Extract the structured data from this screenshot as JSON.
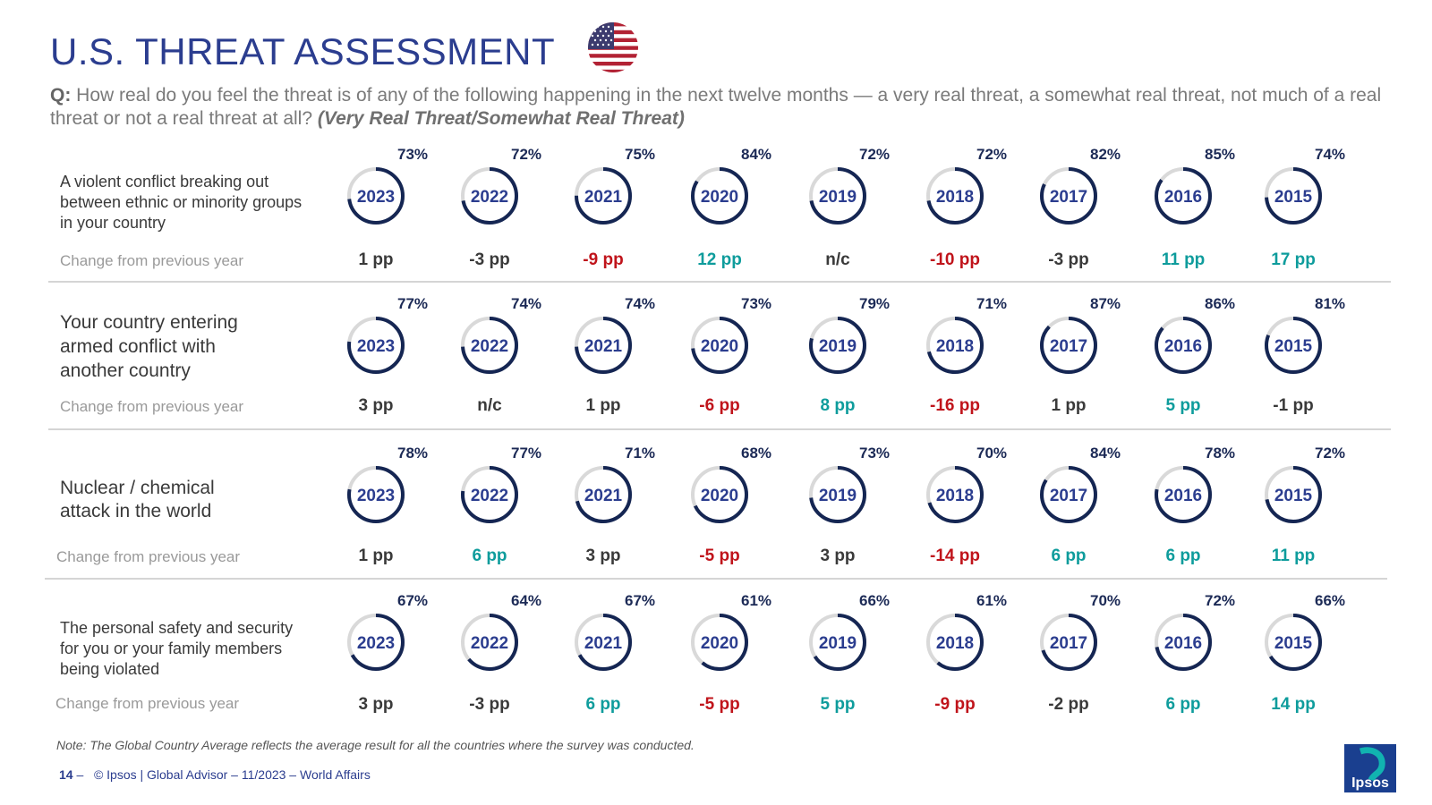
{
  "header": {
    "title": "U.S. THREAT ASSESSMENT",
    "question_prefix": "Q:",
    "question_text": " How real do you feel the threat is of any of the following happening in the next twelve months — a very real threat, a somewhat real threat, not much of a real threat or not a real threat at all? ",
    "question_emphasis": "(Very Real Threat/Somewhat Real Threat)"
  },
  "chart_data": {
    "type": "donut-grid",
    "title": "U.S. THREAT ASSESSMENT",
    "years": [
      "2023",
      "2022",
      "2021",
      "2020",
      "2019",
      "2018",
      "2017",
      "2016",
      "2015"
    ],
    "change_label": "Change from previous year",
    "series": [
      {
        "name": "A violent conflict breaking out between ethnic or minority groups in your country",
        "values": [
          73,
          72,
          75,
          84,
          72,
          72,
          82,
          85,
          74
        ],
        "changes": [
          "1 pp",
          "-3 pp",
          "-9 pp",
          "12 pp",
          "n/c",
          "-10 pp",
          "-3 pp",
          "11 pp",
          "17 pp"
        ]
      },
      {
        "name": "Your country entering armed conflict with another country",
        "values": [
          77,
          74,
          74,
          73,
          79,
          71,
          87,
          86,
          81
        ],
        "changes": [
          "3 pp",
          "n/c",
          "1 pp",
          "-6 pp",
          "8 pp",
          "-16 pp",
          "1 pp",
          "5 pp",
          "-1 pp"
        ]
      },
      {
        "name": "Nuclear / chemical attack in the world",
        "values": [
          78,
          77,
          71,
          68,
          73,
          70,
          84,
          78,
          72
        ],
        "changes": [
          "1 pp",
          "6 pp",
          "3 pp",
          "-5 pp",
          "3 pp",
          "-14 pp",
          "6 pp",
          "6 pp",
          "11 pp"
        ]
      },
      {
        "name": "The personal safety and security for you or your family members being violated",
        "values": [
          67,
          64,
          67,
          61,
          66,
          61,
          70,
          72,
          66
        ],
        "changes": [
          "3 pp",
          "-3 pp",
          "6 pp",
          "-5 pp",
          "5 pp",
          "-9 pp",
          "-2 pp",
          "6 pp",
          "14 pp"
        ]
      }
    ],
    "colors": {
      "ring": "#152653",
      "track": "#d9d9d9",
      "year_text": "#2b3d8f",
      "positive": "#0e9c9c",
      "negative": "#c0141b",
      "neutral": "#3a3a3a"
    }
  },
  "row_labels": [
    "A violent conflict breaking out\nbetween ethnic or minority groups\nin your country",
    "Your country entering\narmed conflict with\nanother country",
    "Nuclear / chemical\nattack in the world",
    "The personal safety and security\nfor you or your family members\nbeing violated"
  ],
  "change_label": "Change from previous year",
  "note": "Note: The Global Country Average reflects the average result for all the countries where the survey was conducted.",
  "footer": {
    "page": "14",
    "dash": " –",
    "text": "© Ipsos | Global Advisor – 11/2023 – World Affairs"
  },
  "logo_text": "Ipsos"
}
